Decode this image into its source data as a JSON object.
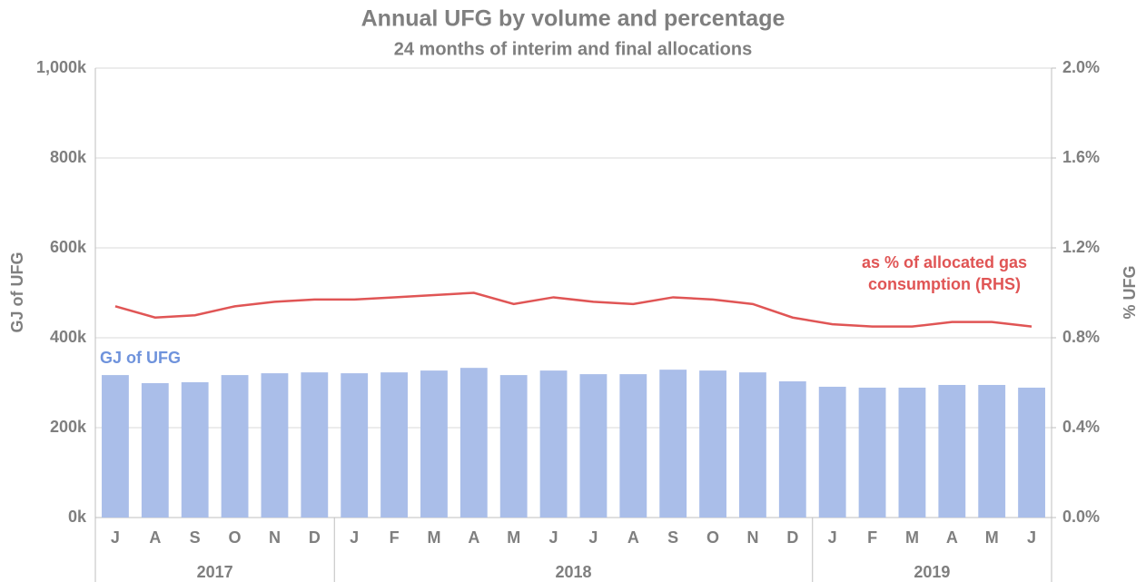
{
  "chart_data": {
    "type": "bar",
    "title": "Annual UFG by volume and percentage",
    "subtitle": "24 months of interim and final allocations",
    "y_label": "GJ of UFG",
    "y2_label": "% UFG",
    "categories": [
      "J",
      "A",
      "S",
      "O",
      "N",
      "D",
      "J",
      "F",
      "M",
      "A",
      "M",
      "J",
      "J",
      "A",
      "S",
      "O",
      "N",
      "D",
      "J",
      "F",
      "M",
      "A",
      "M",
      "J"
    ],
    "x_groups": [
      "2017",
      "2017",
      "2017",
      "2017",
      "2017",
      "2017",
      "2018",
      "2018",
      "2018",
      "2018",
      "2018",
      "2018",
      "2018",
      "2018",
      "2018",
      "2018",
      "2018",
      "2018",
      "2019",
      "2019",
      "2019",
      "2019",
      "2019",
      "2019"
    ],
    "series": [
      {
        "name": "GJ of UFG",
        "type": "bar",
        "color": "#aabee9",
        "label_color": "#6f93dc",
        "values": [
          317000,
          299000,
          301000,
          317000,
          321000,
          323000,
          321000,
          323000,
          327000,
          333000,
          317000,
          327000,
          319000,
          319000,
          329000,
          327000,
          323000,
          303000,
          291000,
          289000,
          289000,
          295000,
          295000,
          289000
        ]
      },
      {
        "name": [
          "as % of allocated gas",
          "consumption (RHS)"
        ],
        "type": "line",
        "axis": "y2",
        "color": "#e05555",
        "values": [
          0.94,
          0.89,
          0.9,
          0.94,
          0.96,
          0.97,
          0.97,
          0.98,
          0.99,
          1.0,
          0.95,
          0.98,
          0.96,
          0.95,
          0.98,
          0.97,
          0.95,
          0.89,
          0.86,
          0.85,
          0.85,
          0.87,
          0.87,
          0.85
        ]
      }
    ],
    "ylim": [
      0,
      1000000
    ],
    "yticks": [
      {
        "value": 0,
        "label": "0k"
      },
      {
        "value": 200000,
        "label": "200k"
      },
      {
        "value": 400000,
        "label": "400k"
      },
      {
        "value": 600000,
        "label": "600k"
      },
      {
        "value": 800000,
        "label": "800k"
      },
      {
        "value": 1000000,
        "label": "1,000k"
      }
    ],
    "y2lim": [
      0,
      2.0
    ],
    "y2ticks": [
      {
        "value": 0,
        "label": "0.0%"
      },
      {
        "value": 0.4,
        "label": "0.4%"
      },
      {
        "value": 0.8,
        "label": "0.8%"
      },
      {
        "value": 1.2,
        "label": "1.2%"
      },
      {
        "value": 1.6,
        "label": "1.6%"
      },
      {
        "value": 2.0,
        "label": "2.0%"
      }
    ],
    "grid": true
  }
}
